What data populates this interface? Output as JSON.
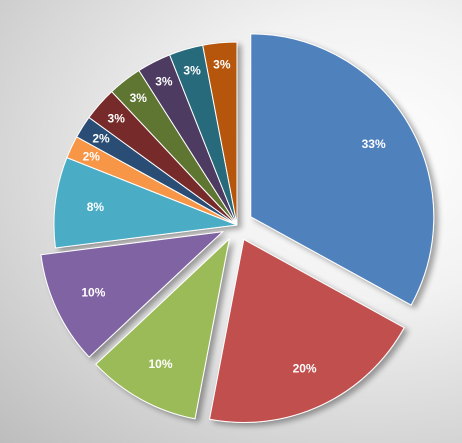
{
  "chart_data": {
    "type": "pie",
    "title": "",
    "values": [
      33,
      20,
      10,
      10,
      8,
      2,
      2,
      3,
      3,
      3,
      3,
      3
    ],
    "labels": [
      "33%",
      "20%",
      "10%",
      "10%",
      "8%",
      "2%",
      "2%",
      "3%",
      "3%",
      "3%",
      "3%",
      "3%"
    ],
    "colors": [
      "#4F81BD",
      "#C0504D",
      "#9BBB59",
      "#8064A2",
      "#4BACC6",
      "#F79646",
      "#2C4D75",
      "#772C2A",
      "#5F7530",
      "#4D3B62",
      "#276A7C",
      "#B65708"
    ],
    "exploded": [
      true,
      true,
      true,
      true,
      false,
      false,
      false,
      false,
      false,
      false,
      false,
      false
    ],
    "start_angle": "12 o'clock, clockwise",
    "legend": "none"
  }
}
